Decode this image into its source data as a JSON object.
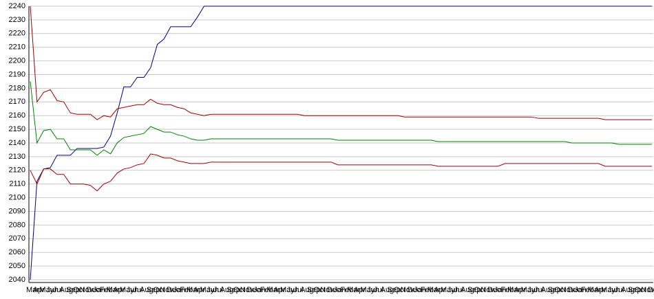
{
  "chart_data": {
    "type": "line",
    "categories": [
      "Mar",
      "Apr",
      "May",
      "Jun",
      "Jul",
      "Aug",
      "Sep",
      "Oct",
      "Nov",
      "Dec",
      "Jan",
      "Feb",
      "Mar",
      "Apr",
      "May",
      "Jun",
      "Jul",
      "Aug",
      "Sep",
      "Oct",
      "Nov",
      "Dec",
      "Jan",
      "Feb",
      "Mar",
      "Apr",
      "May",
      "Jun",
      "Jul",
      "Aug",
      "Sep",
      "Oct",
      "Nov",
      "Dec",
      "Jan",
      "Feb",
      "Mar",
      "Apr",
      "May",
      "Jun",
      "Jul",
      "Aug",
      "Sep",
      "Oct",
      "Nov",
      "Dec",
      "Jan",
      "Feb",
      "Mar",
      "Apr",
      "May",
      "Jun",
      "Jul",
      "Aug",
      "Sep",
      "Oct",
      "Nov",
      "Dec",
      "Jan",
      "Feb",
      "Mar",
      "Apr",
      "May",
      "Jun",
      "Jul",
      "Aug",
      "Sep",
      "Oct",
      "Nov",
      "Dec",
      "Jan",
      "Feb",
      "Mar",
      "Apr",
      "May",
      "Jun",
      "Jul",
      "Aug",
      "Sep",
      "Oct",
      "Nov",
      "Dec",
      "Jan",
      "Feb",
      "Mar",
      "Apr",
      "May",
      "Jun",
      "Jul",
      "Aug",
      "Sep",
      "Oct",
      "Nov",
      "Dec"
    ],
    "series": [
      {
        "color": "#000080",
        "values": [
          2040,
          2112,
          2121,
          2122,
          2131,
          2131,
          2131,
          2136,
          2136,
          2136,
          2136,
          2137,
          2145,
          2162,
          2181,
          2181,
          2188,
          2188,
          2195,
          2212,
          2216,
          2225,
          2225,
          2225,
          2225,
          2232,
          2240,
          2240,
          2240,
          2240,
          2240,
          2240,
          2240,
          2240,
          2240,
          2240,
          2240,
          2240,
          2240,
          2240,
          2240,
          2240,
          2240,
          2240,
          2240,
          2240,
          2240,
          2240,
          2240,
          2240,
          2240,
          2240,
          2240,
          2240,
          2240,
          2240,
          2240,
          2240,
          2240,
          2240,
          2240,
          2240,
          2240,
          2240,
          2240,
          2240,
          2240,
          2240,
          2240,
          2240,
          2240,
          2240,
          2240,
          2240,
          2240,
          2240,
          2240,
          2240,
          2240,
          2240,
          2240,
          2240,
          2240,
          2240,
          2240,
          2240,
          2240,
          2240,
          2240,
          2240,
          2240,
          2240,
          2240,
          2240
        ]
      },
      {
        "color": "#a00000",
        "values": [
          2240,
          2170,
          2177,
          2179,
          2171,
          2170,
          2162,
          2161,
          2161,
          2161,
          2157,
          2160,
          2159,
          2165,
          2166,
          2167,
          2168,
          2168,
          2172,
          2169,
          2168,
          2168,
          2166,
          2165,
          2162,
          2161,
          2160,
          2161,
          2161,
          2161,
          2161,
          2161,
          2161,
          2161,
          2161,
          2161,
          2161,
          2161,
          2161,
          2161,
          2161,
          2160,
          2160,
          2160,
          2160,
          2160,
          2160,
          2160,
          2160,
          2160,
          2160,
          2160,
          2160,
          2160,
          2160,
          2160,
          2159,
          2159,
          2159,
          2159,
          2159,
          2159,
          2159,
          2159,
          2159,
          2159,
          2159,
          2159,
          2159,
          2159,
          2159,
          2159,
          2159,
          2159,
          2159,
          2159,
          2158,
          2158,
          2158,
          2158,
          2158,
          2158,
          2158,
          2158,
          2158,
          2158,
          2157,
          2157,
          2157,
          2157,
          2157,
          2157,
          2157,
          2157
        ]
      },
      {
        "color": "#008000",
        "values": [
          2185,
          2140,
          2149,
          2150,
          2143,
          2143,
          2135,
          2135,
          2135,
          2135,
          2131,
          2135,
          2132,
          2140,
          2144,
          2145,
          2146,
          2147,
          2152,
          2150,
          2148,
          2148,
          2146,
          2145,
          2143,
          2142,
          2142,
          2143,
          2143,
          2143,
          2143,
          2143,
          2143,
          2143,
          2143,
          2143,
          2143,
          2143,
          2143,
          2143,
          2143,
          2143,
          2143,
          2143,
          2143,
          2143,
          2142,
          2142,
          2142,
          2142,
          2142,
          2142,
          2142,
          2142,
          2142,
          2142,
          2142,
          2142,
          2142,
          2142,
          2142,
          2141,
          2141,
          2141,
          2141,
          2141,
          2141,
          2141,
          2141,
          2141,
          2141,
          2141,
          2141,
          2141,
          2141,
          2141,
          2141,
          2141,
          2141,
          2141,
          2141,
          2140,
          2140,
          2140,
          2140,
          2140,
          2140,
          2140,
          2139,
          2139,
          2139,
          2139,
          2139,
          2139
        ]
      },
      {
        "color": "#a00000",
        "values": [
          2120,
          2110,
          2121,
          2121,
          2117,
          2117,
          2110,
          2110,
          2110,
          2109,
          2105,
          2110,
          2112,
          2118,
          2121,
          2122,
          2124,
          2125,
          2132,
          2131,
          2129,
          2129,
          2127,
          2126,
          2125,
          2125,
          2125,
          2126,
          2126,
          2126,
          2126,
          2126,
          2126,
          2126,
          2126,
          2126,
          2126,
          2126,
          2126,
          2126,
          2126,
          2126,
          2126,
          2126,
          2126,
          2126,
          2124,
          2124,
          2124,
          2124,
          2124,
          2124,
          2124,
          2124,
          2124,
          2124,
          2124,
          2124,
          2124,
          2124,
          2124,
          2123,
          2123,
          2123,
          2123,
          2123,
          2123,
          2123,
          2123,
          2123,
          2123,
          2125,
          2125,
          2125,
          2125,
          2125,
          2125,
          2125,
          2125,
          2125,
          2125,
          2125,
          2125,
          2125,
          2125,
          2125,
          2123,
          2123,
          2123,
          2123,
          2123,
          2123,
          2123,
          2123
        ]
      }
    ],
    "ylim": [
      2040,
      2240
    ],
    "yticks": [
      2040,
      2050,
      2060,
      2070,
      2080,
      2090,
      2100,
      2110,
      2120,
      2130,
      2140,
      2150,
      2160,
      2170,
      2180,
      2190,
      2200,
      2210,
      2220,
      2230,
      2240
    ],
    "grid": true
  }
}
